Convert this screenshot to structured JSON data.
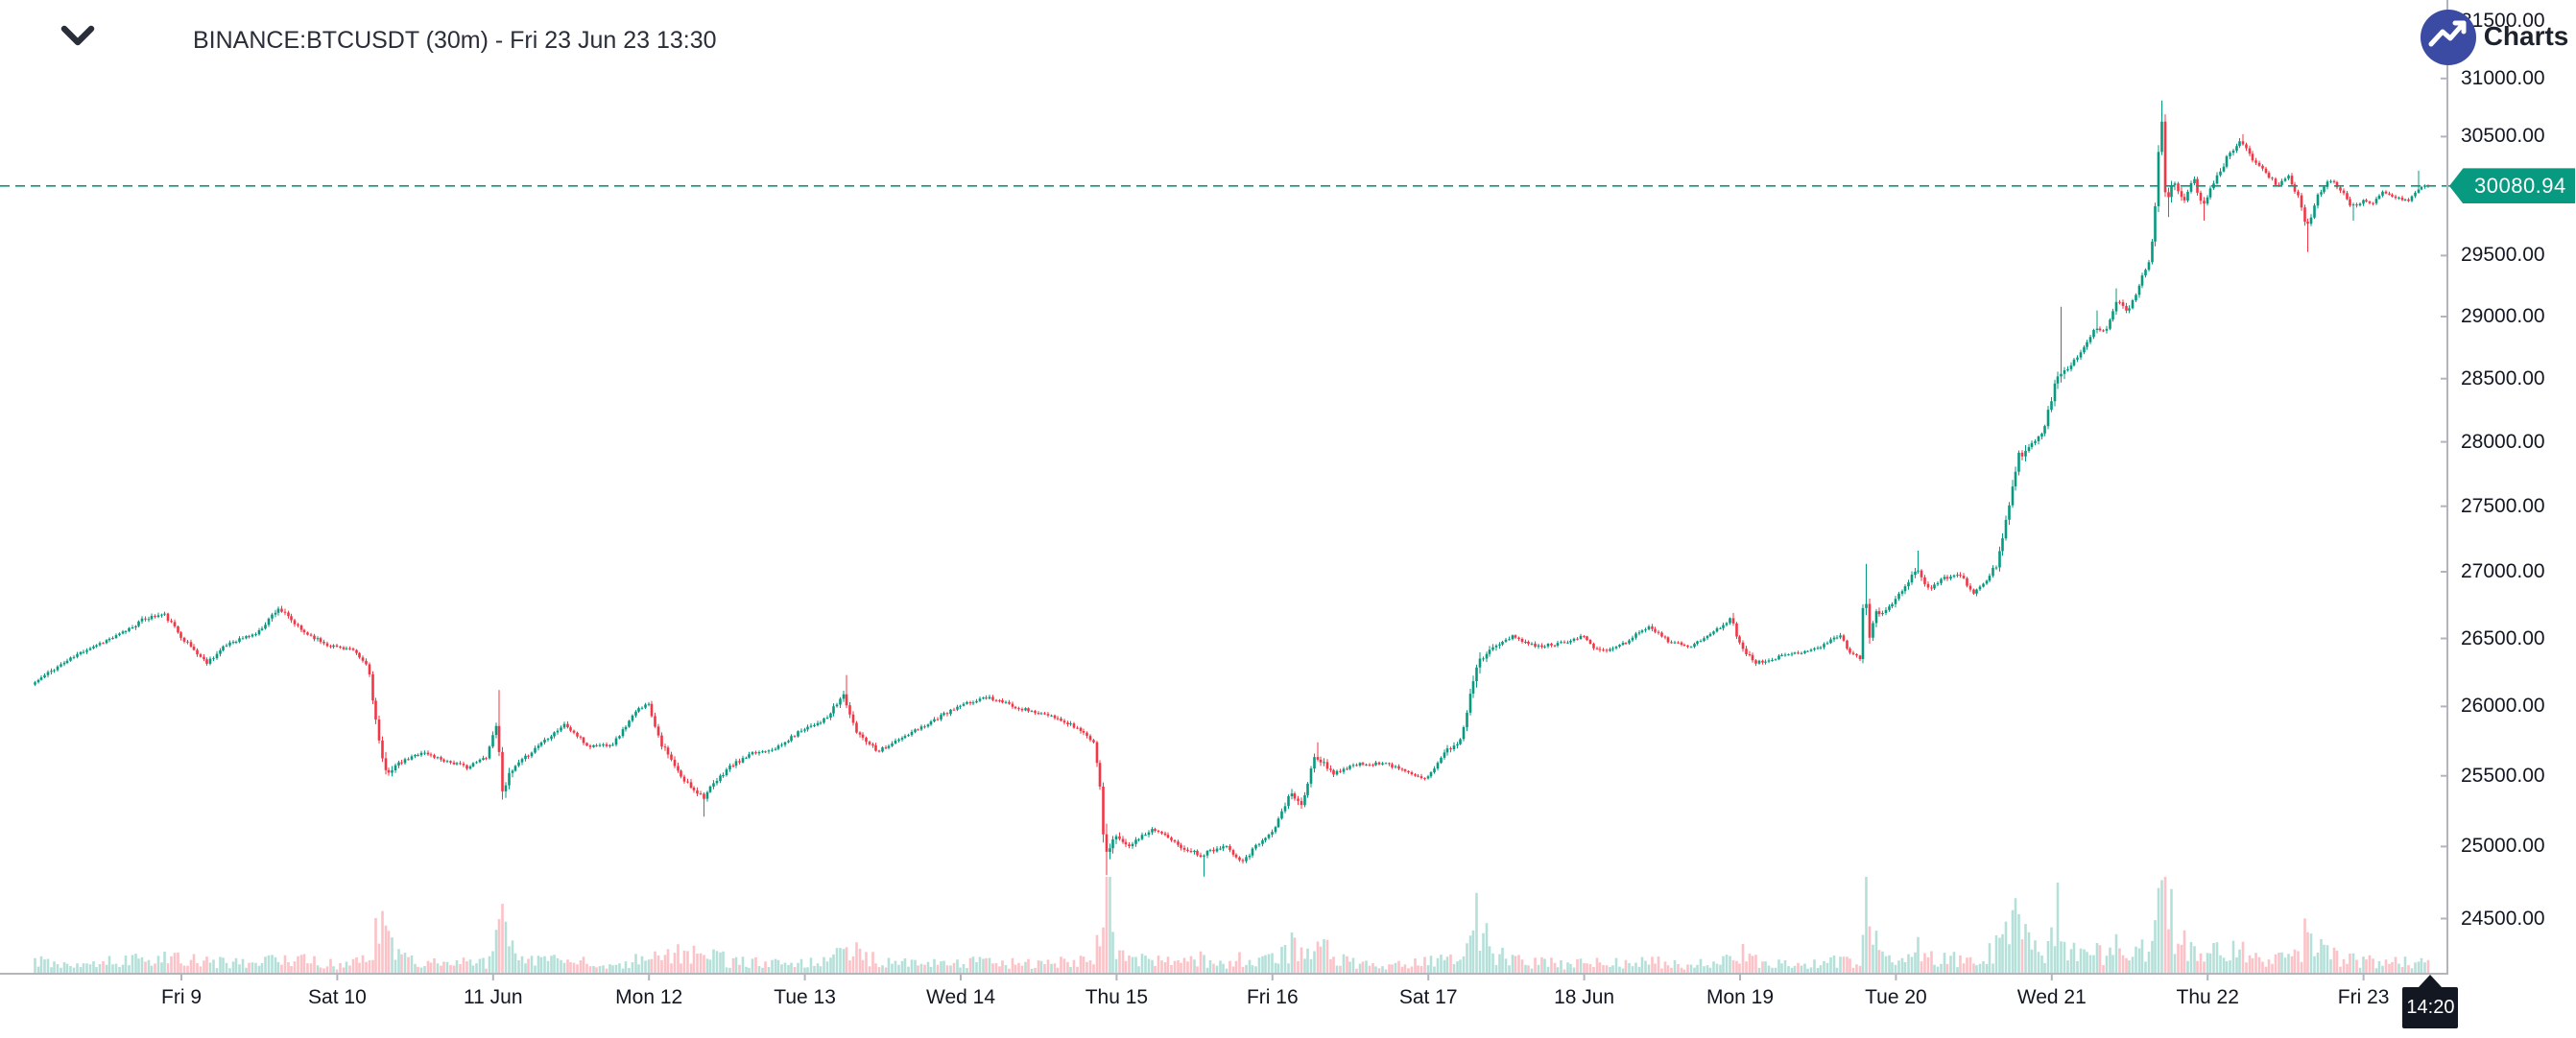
{
  "header": {
    "title": "BINANCE:BTCUSDT (30m) - Fri 23 Jun 23 13:30",
    "watermark": "Charts |"
  },
  "price_scale": {
    "side": "right",
    "scale_type": "log",
    "current_price": 30080.94,
    "current_price_label": "30080.94",
    "ticks": [
      {
        "label": "31500.00",
        "value": 31500
      },
      {
        "label": "31000.00",
        "value": 31000
      },
      {
        "label": "30500.00",
        "value": 30500
      },
      {
        "label": "29500.00",
        "value": 29500
      },
      {
        "label": "29000.00",
        "value": 29000
      },
      {
        "label": "28500.00",
        "value": 28500
      },
      {
        "label": "28000.00",
        "value": 28000
      },
      {
        "label": "27500.00",
        "value": 27500
      },
      {
        "label": "27000.00",
        "value": 27000
      },
      {
        "label": "26500.00",
        "value": 26500
      },
      {
        "label": "26000.00",
        "value": 26000
      },
      {
        "label": "25500.00",
        "value": 25500
      },
      {
        "label": "25000.00",
        "value": 25000
      },
      {
        "label": "24500.00",
        "value": 24500
      }
    ]
  },
  "time_scale": {
    "ticks": [
      {
        "label": "Fri 9",
        "day": 0
      },
      {
        "label": "Sat 10",
        "day": 1
      },
      {
        "label": "11 Jun",
        "day": 2
      },
      {
        "label": "Mon 12",
        "day": 3
      },
      {
        "label": "Tue 13",
        "day": 4
      },
      {
        "label": "Wed 14",
        "day": 5
      },
      {
        "label": "Thu 15",
        "day": 6
      },
      {
        "label": "Fri 16",
        "day": 7
      },
      {
        "label": "Sat 17",
        "day": 8
      },
      {
        "label": "18 Jun",
        "day": 9
      },
      {
        "label": "Mon 19",
        "day": 10
      },
      {
        "label": "Tue 20",
        "day": 11
      },
      {
        "label": "Wed 21",
        "day": 12
      },
      {
        "label": "Thu 22",
        "day": 13
      },
      {
        "label": "Fri 23",
        "day": 14
      }
    ],
    "cursor_time_label": "14:20",
    "cursor_day": 14.43
  },
  "chart_data": {
    "type": "candlestick",
    "symbol": "BINANCE:BTCUSDT",
    "interval": "30m",
    "title": "BINANCE:BTCUSDT (30m) - Fri 23 Jun 23 13:30",
    "last_price": 30080.94,
    "window_high": 30810,
    "window_low": 24780,
    "price_axis_range": [
      24350,
      31560
    ],
    "grid": false,
    "candles_per_day": 48,
    "start_day": -0.95,
    "end_day": 14.43,
    "day0_label": "Fri 9 Jun 2023",
    "keyframes": [
      [
        -0.95,
        26160,
        55
      ],
      [
        -0.8,
        26280,
        50
      ],
      [
        -0.6,
        26420,
        50
      ],
      [
        -0.4,
        26520,
        50
      ],
      [
        -0.22,
        26650,
        60
      ],
      [
        -0.1,
        26680,
        65
      ],
      [
        0.02,
        26500,
        55
      ],
      [
        0.17,
        26320,
        60
      ],
      [
        0.32,
        26470,
        50
      ],
      [
        0.5,
        26540,
        50
      ],
      [
        0.63,
        26730,
        70
      ],
      [
        0.78,
        26560,
        55
      ],
      [
        0.95,
        26450,
        45
      ],
      [
        1.1,
        26420,
        45
      ],
      [
        1.21,
        26290,
        60
      ],
      [
        1.26,
        25880,
        150
      ],
      [
        1.31,
        25520,
        130
      ],
      [
        1.4,
        25580,
        60
      ],
      [
        1.55,
        25670,
        50
      ],
      [
        1.7,
        25610,
        45
      ],
      [
        1.85,
        25560,
        50
      ],
      [
        1.97,
        25640,
        50
      ],
      [
        2.03,
        25880,
        110
      ],
      [
        2.07,
        25420,
        150
      ],
      [
        2.15,
        25560,
        60
      ],
      [
        2.32,
        25740,
        50
      ],
      [
        2.47,
        25870,
        55
      ],
      [
        2.62,
        25710,
        50
      ],
      [
        2.78,
        25730,
        45
      ],
      [
        2.92,
        25950,
        55
      ],
      [
        3.0,
        26040,
        60
      ],
      [
        3.09,
        25730,
        85
      ],
      [
        3.22,
        25480,
        70
      ],
      [
        3.36,
        25350,
        70
      ],
      [
        3.52,
        25560,
        55
      ],
      [
        3.68,
        25660,
        50
      ],
      [
        3.85,
        25710,
        45
      ],
      [
        4.0,
        25840,
        50
      ],
      [
        4.15,
        25910,
        55
      ],
      [
        4.26,
        26090,
        85
      ],
      [
        4.33,
        25830,
        75
      ],
      [
        4.48,
        25680,
        55
      ],
      [
        4.65,
        25780,
        45
      ],
      [
        4.82,
        25890,
        50
      ],
      [
        5.0,
        26000,
        50
      ],
      [
        5.18,
        26070,
        50
      ],
      [
        5.38,
        25990,
        45
      ],
      [
        5.58,
        25930,
        45
      ],
      [
        5.75,
        25850,
        55
      ],
      [
        5.86,
        25750,
        65
      ],
      [
        5.9,
        25500,
        140
      ],
      [
        5.94,
        24900,
        230
      ],
      [
        5.99,
        25080,
        100
      ],
      [
        6.1,
        25010,
        55
      ],
      [
        6.25,
        25130,
        55
      ],
      [
        6.4,
        25010,
        50
      ],
      [
        6.55,
        24940,
        60
      ],
      [
        6.7,
        25010,
        50
      ],
      [
        6.82,
        24900,
        60
      ],
      [
        6.93,
        25030,
        55
      ],
      [
        7.03,
        25140,
        60
      ],
      [
        7.13,
        25380,
        95
      ],
      [
        7.2,
        25280,
        75
      ],
      [
        7.28,
        25640,
        110
      ],
      [
        7.4,
        25520,
        60
      ],
      [
        7.55,
        25580,
        45
      ],
      [
        7.72,
        25590,
        42
      ],
      [
        7.88,
        25530,
        45
      ],
      [
        8.0,
        25480,
        50
      ],
      [
        8.12,
        25670,
        70
      ],
      [
        8.22,
        25760,
        60
      ],
      [
        8.32,
        26310,
        150
      ],
      [
        8.42,
        26450,
        75
      ],
      [
        8.55,
        26510,
        55
      ],
      [
        8.7,
        26440,
        50
      ],
      [
        8.85,
        26460,
        45
      ],
      [
        9.0,
        26520,
        45
      ],
      [
        9.1,
        26400,
        55
      ],
      [
        9.25,
        26450,
        45
      ],
      [
        9.42,
        26590,
        55
      ],
      [
        9.55,
        26480,
        45
      ],
      [
        9.7,
        26440,
        42
      ],
      [
        9.85,
        26560,
        50
      ],
      [
        9.96,
        26650,
        55
      ],
      [
        10.0,
        26480,
        85
      ],
      [
        10.1,
        26320,
        55
      ],
      [
        10.25,
        26360,
        45
      ],
      [
        10.4,
        26400,
        42
      ],
      [
        10.55,
        26450,
        48
      ],
      [
        10.65,
        26530,
        55
      ],
      [
        10.72,
        26390,
        55
      ],
      [
        10.78,
        26350,
        50
      ],
      [
        10.81,
        26900,
        190
      ],
      [
        10.84,
        26520,
        150
      ],
      [
        10.88,
        26680,
        90
      ],
      [
        10.95,
        26720,
        70
      ],
      [
        11.02,
        26800,
        70
      ],
      [
        11.1,
        26950,
        80
      ],
      [
        11.15,
        27030,
        90
      ],
      [
        11.22,
        26870,
        70
      ],
      [
        11.32,
        26950,
        60
      ],
      [
        11.42,
        26990,
        60
      ],
      [
        11.5,
        26840,
        60
      ],
      [
        11.58,
        26910,
        65
      ],
      [
        11.66,
        27060,
        95
      ],
      [
        11.73,
        27450,
        170
      ],
      [
        11.8,
        27900,
        160
      ],
      [
        11.88,
        27980,
        80
      ],
      [
        11.96,
        28080,
        75
      ],
      [
        12.02,
        28420,
        150
      ],
      [
        12.06,
        28520,
        170
      ],
      [
        12.12,
        28600,
        80
      ],
      [
        12.2,
        28720,
        70
      ],
      [
        12.28,
        28900,
        80
      ],
      [
        12.35,
        28870,
        70
      ],
      [
        12.42,
        29120,
        90
      ],
      [
        12.5,
        29050,
        70
      ],
      [
        12.58,
        29280,
        90
      ],
      [
        12.64,
        29470,
        110
      ],
      [
        12.68,
        29960,
        160
      ],
      [
        12.71,
        30740,
        240
      ],
      [
        12.74,
        29980,
        200
      ],
      [
        12.8,
        30100,
        110
      ],
      [
        12.86,
        29960,
        90
      ],
      [
        12.92,
        30140,
        80
      ],
      [
        12.98,
        29900,
        90
      ],
      [
        13.06,
        30130,
        80
      ],
      [
        13.14,
        30330,
        80
      ],
      [
        13.22,
        30480,
        80
      ],
      [
        13.3,
        30300,
        70
      ],
      [
        13.38,
        30200,
        60
      ],
      [
        13.46,
        30080,
        70
      ],
      [
        13.53,
        30150,
        75
      ],
      [
        13.6,
        29960,
        90
      ],
      [
        13.645,
        29700,
        130
      ],
      [
        13.71,
        29990,
        85
      ],
      [
        13.79,
        30130,
        70
      ],
      [
        13.87,
        30050,
        60
      ],
      [
        13.93,
        29900,
        65
      ],
      [
        14.0,
        29950,
        55
      ],
      [
        14.07,
        29940,
        55
      ],
      [
        14.14,
        30030,
        50
      ],
      [
        14.22,
        29990,
        48
      ],
      [
        14.3,
        29950,
        50
      ],
      [
        14.36,
        30060,
        55
      ],
      [
        14.43,
        30080.94,
        50
      ]
    ],
    "wick_events": [
      [
        2.03,
        26120,
        null
      ],
      [
        2.07,
        null,
        25330
      ],
      [
        3.36,
        null,
        25210
      ],
      [
        4.26,
        26230,
        null
      ],
      [
        5.94,
        null,
        24800
      ],
      [
        6.55,
        null,
        24790
      ],
      [
        7.28,
        25740,
        null
      ],
      [
        9.96,
        26690,
        null
      ],
      [
        10.81,
        27060,
        null
      ],
      [
        11.15,
        27160,
        null
      ],
      [
        12.06,
        29080,
        null
      ],
      [
        12.28,
        29050,
        null
      ],
      [
        12.42,
        29230,
        null
      ],
      [
        12.71,
        30810,
        null
      ],
      [
        12.74,
        null,
        29820
      ],
      [
        12.98,
        null,
        29790
      ],
      [
        13.22,
        30520,
        null
      ],
      [
        13.645,
        null,
        29530
      ],
      [
        13.93,
        null,
        29790
      ],
      [
        14.36,
        30210,
        null
      ]
    ]
  },
  "colors": {
    "up": "#089981",
    "down": "#f23645",
    "volume_up": "rgba(8,153,129,0.30)",
    "volume_down": "rgba(242,54,69,0.30)",
    "accent": "#089981",
    "axis": "#b2b5be",
    "text": "#131722",
    "badge_bg": "#131722",
    "logo": "#3b4aa2"
  }
}
